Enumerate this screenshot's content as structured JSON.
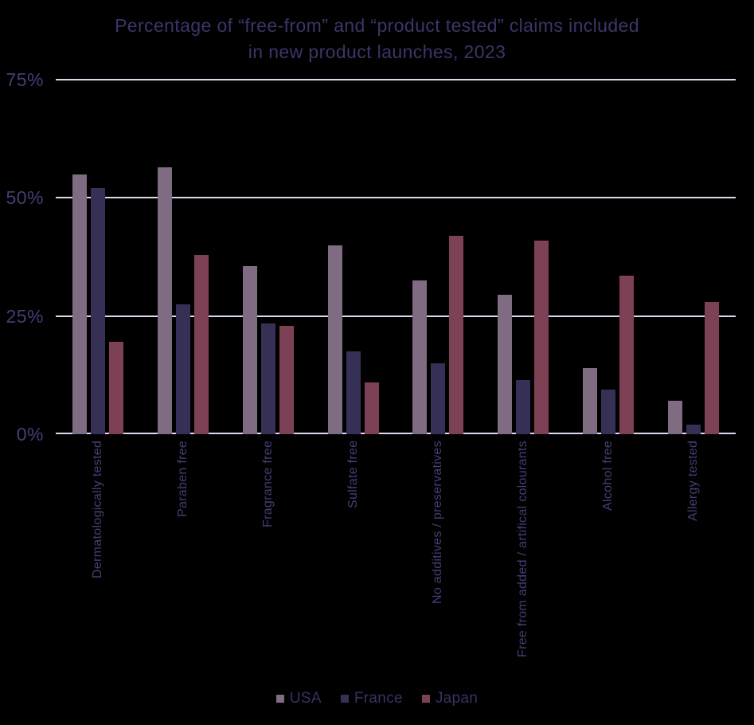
{
  "title": {
    "line1": "Percentage of “free-from” and “product tested” claims included",
    "line2": "in new product launches, 2023"
  },
  "chart_data": {
    "type": "bar",
    "title": "Percentage of “free-from” and “product tested” claims included in new product launches, 2023",
    "categories": [
      "Dermatologically tested",
      "Paraben free",
      "Fragrance free",
      "Sulfate free",
      "No additives / preservatives",
      "Free from added / artifical colourants",
      "Alcohol free",
      "Allergy tested"
    ],
    "series": [
      {
        "name": "USA",
        "color": "#806c82",
        "values": [
          55,
          56.5,
          35.5,
          40,
          32.5,
          29.5,
          14,
          7
        ]
      },
      {
        "name": "France",
        "color": "#363056",
        "values": [
          52,
          27.5,
          23.5,
          17.5,
          15,
          11.5,
          9.5,
          2
        ]
      },
      {
        "name": "Japan",
        "color": "#7d4156",
        "values": [
          19.5,
          38,
          23,
          11,
          42,
          41,
          33.5,
          28
        ]
      }
    ],
    "xlabel": "",
    "ylabel": "",
    "ylim": [
      0,
      75
    ],
    "y_ticks": [
      {
        "label": "75%",
        "value": 75
      },
      {
        "label": "50%",
        "value": 50
      },
      {
        "label": "25%",
        "value": 25
      },
      {
        "label": "0%",
        "value": 0
      }
    ],
    "grid": true,
    "legend_position": "bottom"
  },
  "colors": {
    "background": "#000000",
    "gridline": "#ddd7ef",
    "title_text": "#3e3468",
    "axis_text": "#473c74",
    "legend_text": "#3b3161"
  }
}
